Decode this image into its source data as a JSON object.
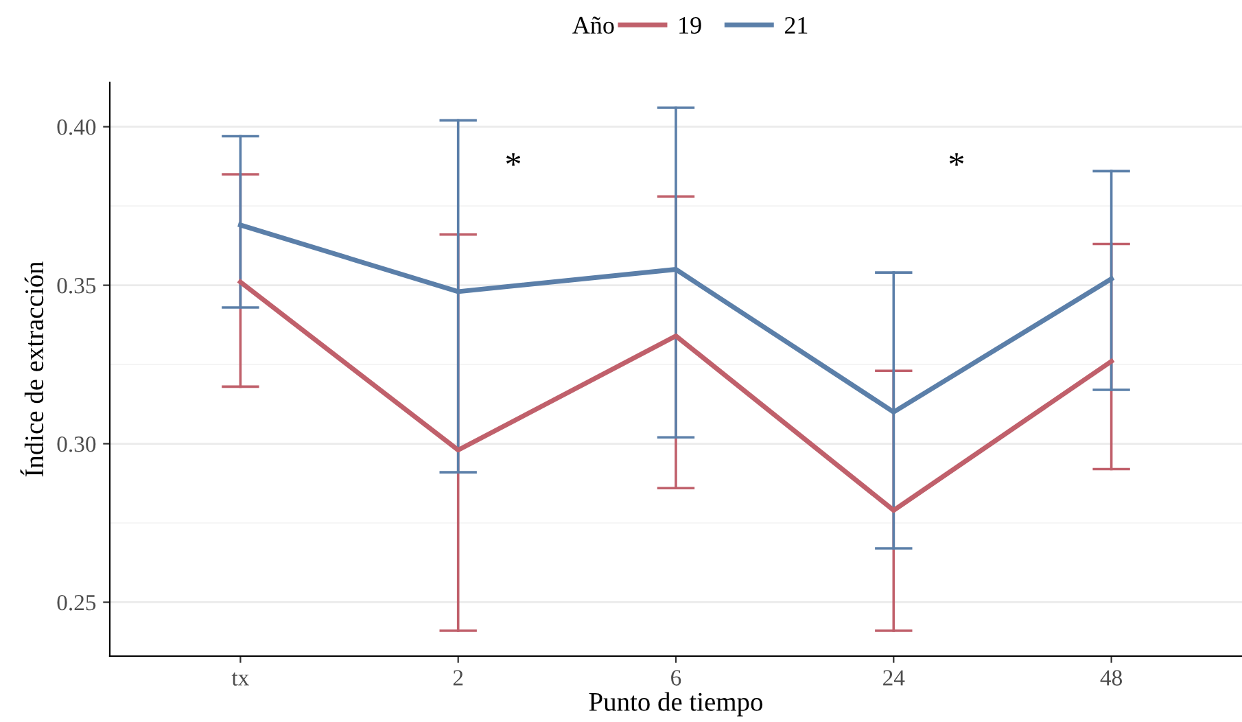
{
  "chart_data": {
    "type": "line",
    "xlabel": "Punto de tiempo",
    "ylabel": "Índice de extracción",
    "legend_title": "Año",
    "categories": [
      "tx",
      "2",
      "6",
      "24",
      "48"
    ],
    "series": [
      {
        "name": "19",
        "color": "#c0606b",
        "values": [
          0.351,
          0.298,
          0.334,
          0.279,
          0.326
        ],
        "errors": [
          [
            0.318,
            0.385
          ],
          [
            0.241,
            0.366
          ],
          [
            0.286,
            0.378
          ],
          [
            0.241,
            0.323
          ],
          [
            0.292,
            0.363
          ]
        ]
      },
      {
        "name": "21",
        "color": "#5b7fa9",
        "values": [
          0.369,
          0.348,
          0.355,
          0.31,
          0.352
        ],
        "errors": [
          [
            0.343,
            0.397
          ],
          [
            0.291,
            0.402
          ],
          [
            0.302,
            0.406
          ],
          [
            0.267,
            0.354
          ],
          [
            0.317,
            0.386
          ]
        ]
      }
    ],
    "ylim": [
      0.233,
      0.414
    ],
    "yticks": [
      {
        "value": 0.25,
        "label": "0.25"
      },
      {
        "value": 0.3,
        "label": "0.30"
      },
      {
        "value": 0.35,
        "label": "0.35"
      },
      {
        "value": 0.4,
        "label": "0.40"
      }
    ],
    "grid": "y",
    "legend": "top",
    "marker": "none",
    "line_style": "solid",
    "annotations": [
      "*",
      "*"
    ]
  }
}
